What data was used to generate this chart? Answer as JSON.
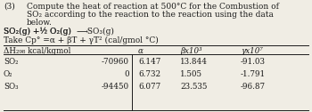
{
  "title_num": "(3)",
  "line1": "Compute the heat of reaction at 500°C for the Combustion of",
  "line2": "SO₂ according to the reaction to the reaction using the data",
  "line3": "below.",
  "reaction_left": "SO₂(g) + ½ O₂(g)",
  "reaction_arrow": "──→",
  "reaction_right": "SO₃(g)",
  "cp_eq": "Take Cp° =α + βT + γT² (cal/gmol °C)",
  "header_dH": "ΔH₂₉₈ kcal/kgmol",
  "header_alpha": "α",
  "header_beta": "βx10³",
  "header_gamma": "γx10⁷",
  "species": [
    "SO₂",
    "O₂",
    "SO₃"
  ],
  "dH": [
    "-70960",
    "0",
    "-94450"
  ],
  "alpha": [
    "6.147",
    "6.732",
    "6.077"
  ],
  "beta": [
    "13.844",
    "1.505",
    "23.535"
  ],
  "gamma": [
    "-91.03",
    "-1.791",
    "-96.87"
  ],
  "bg_color": "#f0ede4",
  "text_color": "#1a1a1a",
  "font_size": 6.5,
  "table_font": 6.3
}
